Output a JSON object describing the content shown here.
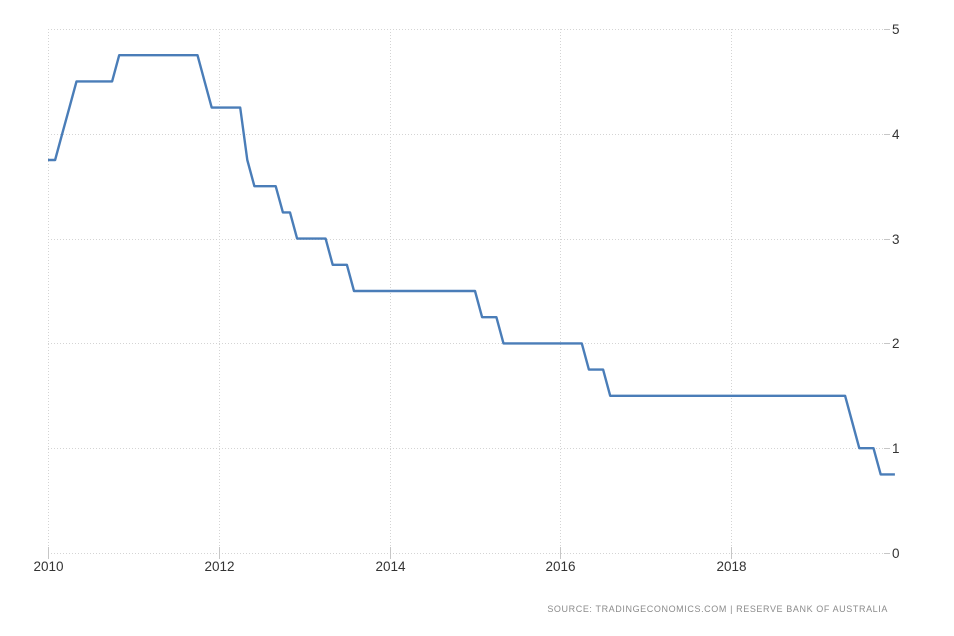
{
  "source": {
    "text": "SOURCE:  TRADINGECONOMICS.COM  |  RESERVE  BANK  OF  AUSTRALIA"
  },
  "chart_data": {
    "type": "line",
    "title": "",
    "xlabel": "",
    "ylabel": "",
    "legend_position": "none",
    "grid": "dotted",
    "ylim": [
      0,
      5
    ],
    "y_ticks": [
      0,
      1,
      2,
      3,
      4,
      5
    ],
    "x_tick_labels": [
      "2010",
      "2012",
      "2014",
      "2016",
      "2018"
    ],
    "x_tick_years": [
      2010,
      2012,
      2014,
      2016,
      2018
    ],
    "x_range": [
      "2010-01",
      "2019-12"
    ],
    "line_color": "#4a7db8",
    "grid_color": "#d4d4d4",
    "tick_color": "#c6c6c6",
    "label_color": "#333333",
    "source_color": "#8b8b8b",
    "background_color": "#ffffff",
    "x": [
      "2010-01",
      "2010-02",
      "2010-03",
      "2010-04",
      "2010-05",
      "2010-06",
      "2010-07",
      "2010-08",
      "2010-09",
      "2010-10",
      "2010-11",
      "2010-12",
      "2011-01",
      "2011-02",
      "2011-03",
      "2011-04",
      "2011-05",
      "2011-06",
      "2011-07",
      "2011-08",
      "2011-09",
      "2011-10",
      "2011-11",
      "2011-12",
      "2012-01",
      "2012-02",
      "2012-03",
      "2012-04",
      "2012-05",
      "2012-06",
      "2012-07",
      "2012-08",
      "2012-09",
      "2012-10",
      "2012-11",
      "2012-12",
      "2013-01",
      "2013-02",
      "2013-03",
      "2013-04",
      "2013-05",
      "2013-06",
      "2013-07",
      "2013-08",
      "2013-09",
      "2013-10",
      "2013-11",
      "2013-12",
      "2014-01",
      "2014-02",
      "2014-03",
      "2014-04",
      "2014-05",
      "2014-06",
      "2014-07",
      "2014-08",
      "2014-09",
      "2014-10",
      "2014-11",
      "2014-12",
      "2015-01",
      "2015-02",
      "2015-03",
      "2015-04",
      "2015-05",
      "2015-06",
      "2015-07",
      "2015-08",
      "2015-09",
      "2015-10",
      "2015-11",
      "2015-12",
      "2016-01",
      "2016-02",
      "2016-03",
      "2016-04",
      "2016-05",
      "2016-06",
      "2016-07",
      "2016-08",
      "2016-09",
      "2016-10",
      "2016-11",
      "2016-12",
      "2017-01",
      "2017-02",
      "2017-03",
      "2017-04",
      "2017-05",
      "2017-06",
      "2017-07",
      "2017-08",
      "2017-09",
      "2017-10",
      "2017-11",
      "2017-12",
      "2018-01",
      "2018-02",
      "2018-03",
      "2018-04",
      "2018-05",
      "2018-06",
      "2018-07",
      "2018-08",
      "2018-09",
      "2018-10",
      "2018-11",
      "2018-12",
      "2019-01",
      "2019-02",
      "2019-03",
      "2019-04",
      "2019-05",
      "2019-06",
      "2019-07",
      "2019-08",
      "2019-09",
      "2019-10",
      "2019-11",
      "2019-12"
    ],
    "values": [
      3.75,
      3.75,
      4.0,
      4.25,
      4.5,
      4.5,
      4.5,
      4.5,
      4.5,
      4.5,
      4.75,
      4.75,
      4.75,
      4.75,
      4.75,
      4.75,
      4.75,
      4.75,
      4.75,
      4.75,
      4.75,
      4.75,
      4.5,
      4.25,
      4.25,
      4.25,
      4.25,
      4.25,
      3.75,
      3.5,
      3.5,
      3.5,
      3.5,
      3.25,
      3.25,
      3.0,
      3.0,
      3.0,
      3.0,
      3.0,
      2.75,
      2.75,
      2.75,
      2.5,
      2.5,
      2.5,
      2.5,
      2.5,
      2.5,
      2.5,
      2.5,
      2.5,
      2.5,
      2.5,
      2.5,
      2.5,
      2.5,
      2.5,
      2.5,
      2.5,
      2.5,
      2.25,
      2.25,
      2.25,
      2.0,
      2.0,
      2.0,
      2.0,
      2.0,
      2.0,
      2.0,
      2.0,
      2.0,
      2.0,
      2.0,
      2.0,
      1.75,
      1.75,
      1.75,
      1.5,
      1.5,
      1.5,
      1.5,
      1.5,
      1.5,
      1.5,
      1.5,
      1.5,
      1.5,
      1.5,
      1.5,
      1.5,
      1.5,
      1.5,
      1.5,
      1.5,
      1.5,
      1.5,
      1.5,
      1.5,
      1.5,
      1.5,
      1.5,
      1.5,
      1.5,
      1.5,
      1.5,
      1.5,
      1.5,
      1.5,
      1.5,
      1.5,
      1.5,
      1.25,
      1.0,
      1.0,
      1.0,
      0.75,
      0.75,
      0.75
    ]
  }
}
